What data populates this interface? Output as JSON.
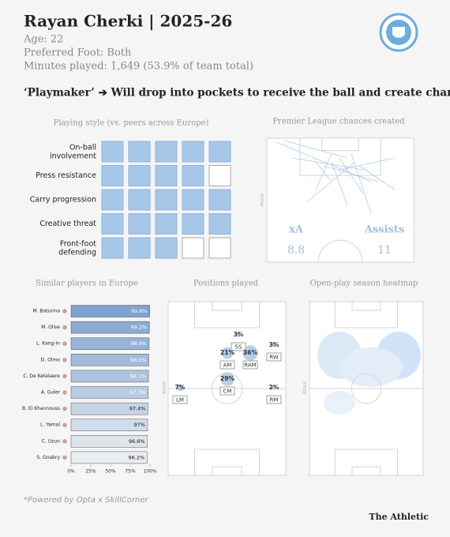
{
  "header": {
    "title": "Rayan Cherki | 2025-26",
    "age": "Age: 22",
    "foot": "Preferred Foot: Both",
    "minutes": "Minutes played: 1,649 (53.9% of team total)",
    "tagline": "‘Playmaker’ ➔ Will drop into pockets to receive the ball and create chances"
  },
  "chart_data": [
    {
      "type": "grid",
      "title": "Playing style (vs. peers across Europe)",
      "categories": [
        "On-ball involvement",
        "Press resistance",
        "Carry progression",
        "Creative threat",
        "Front-foot defending"
      ],
      "values": [
        5,
        4,
        5,
        5,
        3
      ],
      "max": 5,
      "color": "#a7c7e8"
    },
    {
      "type": "chances",
      "title": "Premier League chances created",
      "attack_label": "Attack",
      "stats": [
        {
          "label": "xA",
          "value": 8.8
        },
        {
          "label": "Assists",
          "value": 11
        }
      ],
      "color": "#9bbfe4"
    },
    {
      "type": "bar",
      "title": "Similar players in Europe",
      "categories": [
        "M. Baturina",
        "M. Olise",
        "L. Kang-in",
        "D. Olmo",
        "C. De Ketelaere",
        "A. Guler",
        "B. El Khannouss",
        "L. Yamal",
        "C. Uzun",
        "S. Gnabry"
      ],
      "values": [
        99.6,
        99.2,
        98.9,
        98.5,
        98.1,
        97.7,
        97.4,
        97,
        96.6,
        96.2
      ],
      "value_labels": [
        "99.6%",
        "99.2%",
        "98.9%",
        "98.5%",
        "98.1%",
        "97.7%",
        "97.4%",
        "97%",
        "96.6%",
        "96.2%"
      ],
      "xlim": [
        0,
        100
      ],
      "xticks": [
        {
          "value": 0,
          "label": "0%"
        },
        {
          "value": 25,
          "label": "25%"
        },
        {
          "value": 50,
          "label": "50%"
        },
        {
          "value": 75,
          "label": "75%"
        },
        {
          "value": 100,
          "label": "100%"
        }
      ],
      "color": "#7fa3cf"
    },
    {
      "type": "positions",
      "title": "Positions played",
      "attack_label": "Attack",
      "categories": [
        "SS",
        "AM",
        "RAM",
        "RW",
        "CM",
        "LM",
        "RM"
      ],
      "values": [
        3,
        21,
        36,
        3,
        29,
        7,
        2
      ],
      "value_labels": [
        "3%",
        "21%",
        "36%",
        "3%",
        "29%",
        "7%",
        "2%"
      ],
      "color": "#a7c7e8"
    },
    {
      "type": "heatmap",
      "title": "Open-play season heatmap",
      "attack_label": "Attack",
      "color": "#9cc3ec"
    }
  ],
  "footer": {
    "note": "*Powered by Opta x SkillCorner",
    "brand": "The Athletic"
  }
}
